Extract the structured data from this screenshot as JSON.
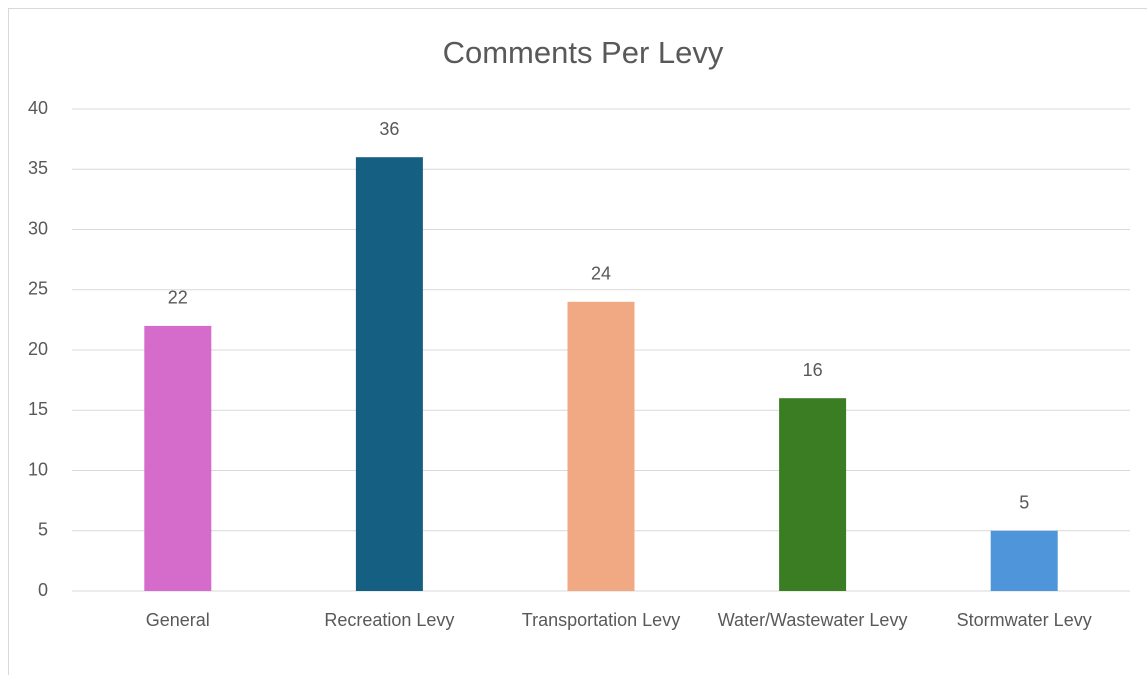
{
  "chart_data": {
    "type": "bar",
    "title": "Comments Per Levy",
    "categories": [
      "General",
      "Recreation Levy",
      "Transportation Levy",
      "Water/Wastewater Levy",
      "Stormwater Levy"
    ],
    "values": [
      22,
      36,
      24,
      16,
      5
    ],
    "colors": [
      "#d56ccc",
      "#156082",
      "#f1a983",
      "#3b7d23",
      "#4e95d9"
    ],
    "ylim": [
      0,
      40
    ],
    "yticks": [
      0,
      5,
      10,
      15,
      20,
      25,
      30,
      35,
      40
    ],
    "grid": true
  }
}
